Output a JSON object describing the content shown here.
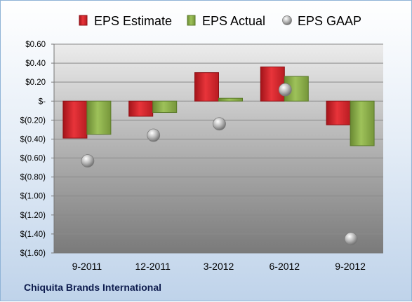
{
  "company": "Chiquita Brands International",
  "colors": {
    "estimate": "#d8232a",
    "actual": "#8cb04a",
    "gaap": "#b9b9b9"
  },
  "chart_data": {
    "type": "bar",
    "categories": [
      "9-2011",
      "12-2011",
      "3-2012",
      "6-2012",
      "9-2012"
    ],
    "series": [
      {
        "name": "EPS Estimate",
        "kind": "bar",
        "values": [
          -0.39,
          -0.16,
          0.3,
          0.36,
          -0.25
        ]
      },
      {
        "name": "EPS Actual",
        "kind": "bar",
        "values": [
          -0.35,
          -0.12,
          0.03,
          0.26,
          -0.47
        ]
      },
      {
        "name": "EPS GAAP",
        "kind": "scatter",
        "values": [
          -0.63,
          -0.36,
          -0.24,
          0.12,
          -1.45
        ]
      }
    ],
    "ylim": [
      -1.6,
      0.6
    ],
    "yticks": [
      {
        "value": 0.6,
        "label": "$0.60"
      },
      {
        "value": 0.4,
        "label": "$0.40"
      },
      {
        "value": 0.2,
        "label": "$0.20"
      },
      {
        "value": 0.0,
        "label": "$-"
      },
      {
        "value": -0.2,
        "label": "$(0.20)"
      },
      {
        "value": -0.4,
        "label": "$(0.40)"
      },
      {
        "value": -0.6,
        "label": "$(0.60)"
      },
      {
        "value": -0.8,
        "label": "$(0.80)"
      },
      {
        "value": -1.0,
        "label": "$(1.00)"
      },
      {
        "value": -1.2,
        "label": "$(1.20)"
      },
      {
        "value": -1.4,
        "label": "$(1.40)"
      },
      {
        "value": -1.6,
        "label": "$(1.60)"
      }
    ],
    "grid": true,
    "legend": "top"
  }
}
